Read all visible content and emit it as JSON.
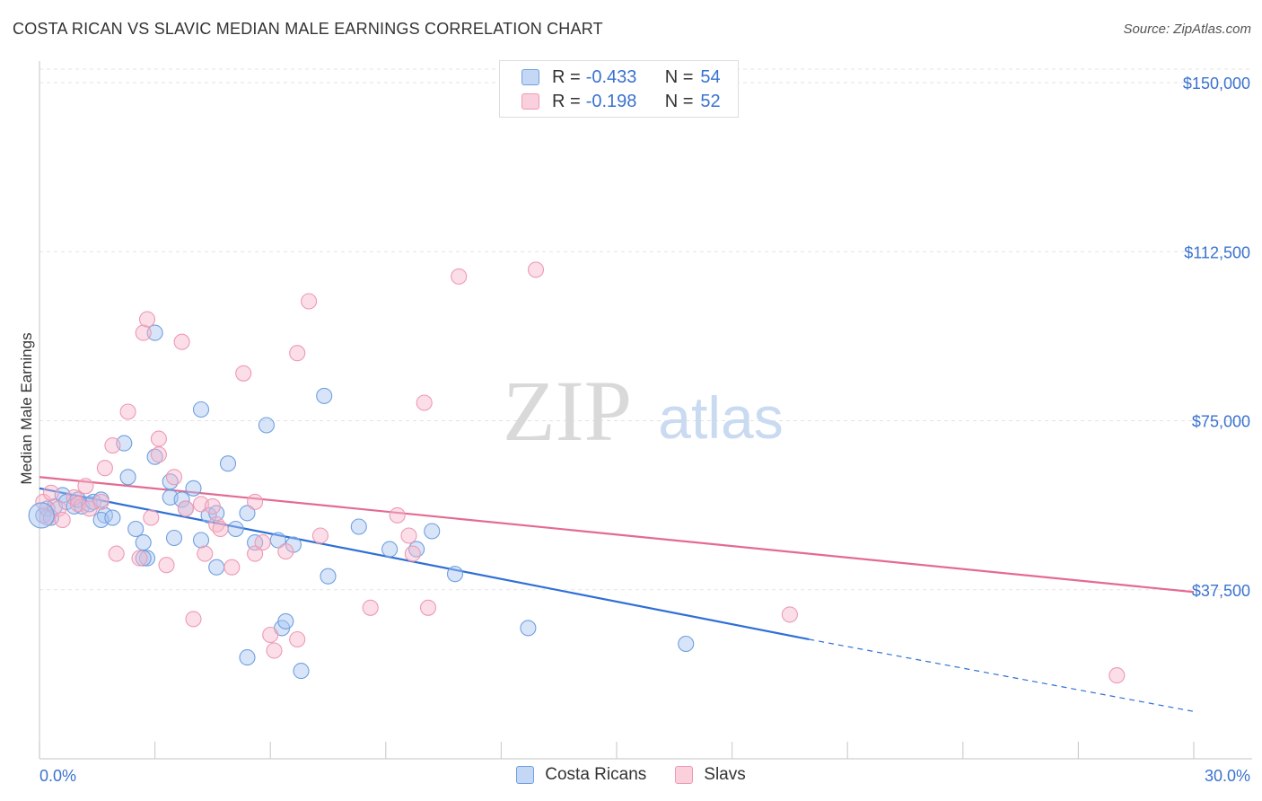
{
  "title": "COSTA RICAN VS SLAVIC MEDIAN MALE EARNINGS CORRELATION CHART",
  "source": "Source: ZipAtlas.com",
  "watermark": {
    "zip": "ZIP",
    "atlas": "atlas"
  },
  "legend_top": [
    {
      "r_label": "R =",
      "r_value": "-0.433",
      "n_label": "N =",
      "n_value": "54",
      "color": "#a9c6f2"
    },
    {
      "r_label": "R =",
      "r_value": "-0.198",
      "n_label": "N =",
      "n_value": "52",
      "color": "#f6b6c9"
    }
  ],
  "legend_bottom": [
    {
      "label": "Costa Ricans",
      "color": "#a9c6f2"
    },
    {
      "label": "Slavs",
      "color": "#f6b6c9"
    }
  ],
  "chart_data": {
    "type": "scatter",
    "title": "COSTA RICAN VS SLAVIC MEDIAN MALE EARNINGS CORRELATION CHART",
    "xlabel": "",
    "ylabel": "Median Male Earnings",
    "xlim": [
      0,
      30
    ],
    "ylim": [
      0,
      153000
    ],
    "x_tick_labels": [
      "0.0%",
      "30.0%"
    ],
    "y_ticks": [
      37500,
      75000,
      112500,
      150000
    ],
    "y_tick_labels": [
      "$37,500",
      "$75,000",
      "$112,500",
      "$150,000"
    ],
    "grid": "horizontal dashed",
    "legend_position": "top-center",
    "series": [
      {
        "name": "Costa Ricans",
        "color": "#6f9fe0",
        "fill": "#a9c6f2",
        "trend": {
          "x": [
            0,
            20
          ],
          "y": [
            60000,
            26500
          ],
          "dashed_to": [
            30,
            10500
          ],
          "color": "#2f6fd6"
        },
        "points": [
          [
            0.1,
            54000
          ],
          [
            0.2,
            55500
          ],
          [
            0.3,
            53500
          ],
          [
            0.4,
            56000
          ],
          [
            0.6,
            58500
          ],
          [
            0.7,
            57000
          ],
          [
            0.9,
            56000
          ],
          [
            1.0,
            57500
          ],
          [
            1.1,
            56000
          ],
          [
            1.3,
            56500
          ],
          [
            1.4,
            57000
          ],
          [
            1.6,
            57500
          ],
          [
            1.7,
            54000
          ],
          [
            1.6,
            53000
          ],
          [
            1.9,
            53500
          ],
          [
            2.2,
            70000
          ],
          [
            2.3,
            62500
          ],
          [
            2.5,
            51000
          ],
          [
            2.7,
            48000
          ],
          [
            2.8,
            44500
          ],
          [
            2.7,
            44500
          ],
          [
            3.0,
            67000
          ],
          [
            3.0,
            94500
          ],
          [
            3.4,
            61500
          ],
          [
            3.4,
            58000
          ],
          [
            3.5,
            49000
          ],
          [
            3.7,
            57500
          ],
          [
            3.8,
            55500
          ],
          [
            4.0,
            60000
          ],
          [
            4.2,
            77500
          ],
          [
            4.2,
            48500
          ],
          [
            4.4,
            54000
          ],
          [
            4.6,
            42500
          ],
          [
            4.6,
            54500
          ],
          [
            4.9,
            65500
          ],
          [
            5.1,
            51000
          ],
          [
            5.4,
            54500
          ],
          [
            5.6,
            48000
          ],
          [
            5.9,
            74000
          ],
          [
            6.2,
            48500
          ],
          [
            6.3,
            29000
          ],
          [
            6.4,
            30500
          ],
          [
            6.6,
            47500
          ],
          [
            6.8,
            19500
          ],
          [
            7.4,
            80500
          ],
          [
            7.5,
            40500
          ],
          [
            8.3,
            51500
          ],
          [
            9.1,
            46500
          ],
          [
            9.8,
            46500
          ],
          [
            10.2,
            50500
          ],
          [
            10.8,
            41000
          ],
          [
            12.7,
            29000
          ],
          [
            16.8,
            25500
          ],
          [
            5.4,
            22500
          ]
        ]
      },
      {
        "name": "Slavs",
        "color": "#ee9ab4",
        "fill": "#f6b6c9",
        "trend": {
          "x": [
            0,
            30
          ],
          "y": [
            62500,
            37000
          ],
          "color": "#e36b92"
        },
        "points": [
          [
            0.1,
            57000
          ],
          [
            0.3,
            59000
          ],
          [
            0.5,
            55500
          ],
          [
            0.6,
            53000
          ],
          [
            0.9,
            58000
          ],
          [
            1.0,
            56500
          ],
          [
            1.2,
            60500
          ],
          [
            1.3,
            55500
          ],
          [
            1.6,
            57000
          ],
          [
            1.7,
            64500
          ],
          [
            1.9,
            69500
          ],
          [
            2.0,
            45500
          ],
          [
            2.3,
            77000
          ],
          [
            2.6,
            44500
          ],
          [
            2.7,
            94500
          ],
          [
            2.8,
            97500
          ],
          [
            2.9,
            53500
          ],
          [
            3.1,
            67500
          ],
          [
            3.1,
            71000
          ],
          [
            3.3,
            43000
          ],
          [
            3.5,
            62500
          ],
          [
            3.7,
            92500
          ],
          [
            3.8,
            55500
          ],
          [
            4.0,
            31000
          ],
          [
            4.2,
            56500
          ],
          [
            4.3,
            45500
          ],
          [
            4.5,
            56000
          ],
          [
            4.6,
            52000
          ],
          [
            4.7,
            51000
          ],
          [
            5.0,
            42500
          ],
          [
            5.3,
            85500
          ],
          [
            5.6,
            57000
          ],
          [
            5.6,
            45500
          ],
          [
            5.8,
            48000
          ],
          [
            6.0,
            27500
          ],
          [
            6.1,
            24000
          ],
          [
            6.4,
            46000
          ],
          [
            6.7,
            26500
          ],
          [
            6.7,
            90000
          ],
          [
            7.0,
            101500
          ],
          [
            7.3,
            49500
          ],
          [
            8.6,
            33500
          ],
          [
            9.3,
            54000
          ],
          [
            9.6,
            49500
          ],
          [
            9.7,
            45500
          ],
          [
            10.1,
            33500
          ],
          [
            10.0,
            79000
          ],
          [
            10.9,
            107000
          ],
          [
            12.9,
            108500
          ],
          [
            19.5,
            32000
          ],
          [
            28.0,
            18500
          ],
          [
            0.2,
            53500
          ]
        ]
      }
    ]
  }
}
